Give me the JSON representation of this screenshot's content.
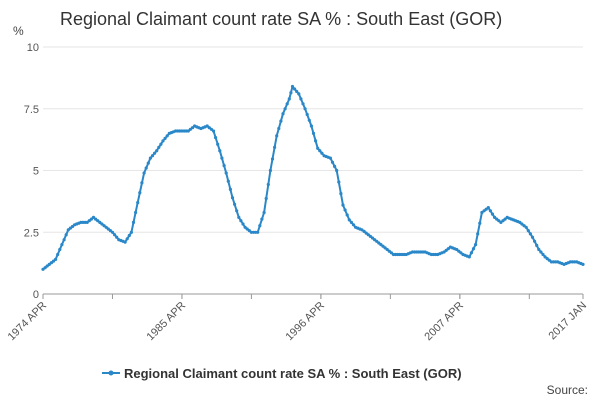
{
  "chart_data": {
    "type": "line",
    "title": "Regional Claimant count rate SA % : South East (GOR)",
    "ylabel": "%",
    "xlabel": "",
    "ylim": [
      0,
      10
    ],
    "y_ticks": [
      "0",
      "2.5",
      "5",
      "7.5",
      "10"
    ],
    "x_ticks": [
      {
        "label": "1974 APR",
        "x": 1974.25
      },
      {
        "label": "1985 APR",
        "x": 1985.25
      },
      {
        "label": "1996 APR",
        "x": 1996.25
      },
      {
        "label": "2007 APR",
        "x": 2007.25
      },
      {
        "label": "2017 JAN",
        "x": 2017.0
      }
    ],
    "xlim": [
      1974.25,
      2017.0
    ],
    "grid": "horizontal",
    "legend": "bottom-center",
    "series": [
      {
        "name": "Regional Claimant count rate SA % : South East (GOR)",
        "color": "#2a87c8",
        "points": [
          [
            1974.25,
            1.0
          ],
          [
            1974.75,
            1.2
          ],
          [
            1975.25,
            1.4
          ],
          [
            1975.75,
            2.0
          ],
          [
            1976.25,
            2.6
          ],
          [
            1976.75,
            2.8
          ],
          [
            1977.25,
            2.9
          ],
          [
            1977.75,
            2.9
          ],
          [
            1978.25,
            3.1
          ],
          [
            1978.75,
            2.9
          ],
          [
            1979.25,
            2.7
          ],
          [
            1979.75,
            2.5
          ],
          [
            1980.25,
            2.2
          ],
          [
            1980.75,
            2.1
          ],
          [
            1981.25,
            2.5
          ],
          [
            1981.75,
            3.7
          ],
          [
            1982.25,
            4.9
          ],
          [
            1982.75,
            5.5
          ],
          [
            1983.25,
            5.8
          ],
          [
            1983.75,
            6.2
          ],
          [
            1984.25,
            6.5
          ],
          [
            1984.75,
            6.6
          ],
          [
            1985.25,
            6.6
          ],
          [
            1985.75,
            6.6
          ],
          [
            1986.25,
            6.8
          ],
          [
            1986.75,
            6.7
          ],
          [
            1987.25,
            6.8
          ],
          [
            1987.75,
            6.6
          ],
          [
            1988.25,
            5.8
          ],
          [
            1988.75,
            4.9
          ],
          [
            1989.25,
            3.9
          ],
          [
            1989.75,
            3.1
          ],
          [
            1990.25,
            2.7
          ],
          [
            1990.75,
            2.5
          ],
          [
            1991.25,
            2.5
          ],
          [
            1991.75,
            3.3
          ],
          [
            1992.25,
            5.0
          ],
          [
            1992.75,
            6.4
          ],
          [
            1993.25,
            7.3
          ],
          [
            1993.75,
            7.9
          ],
          [
            1994.0,
            8.4
          ],
          [
            1994.5,
            8.1
          ],
          [
            1995.0,
            7.5
          ],
          [
            1995.5,
            6.8
          ],
          [
            1996.0,
            5.9
          ],
          [
            1996.5,
            5.6
          ],
          [
            1997.0,
            5.5
          ],
          [
            1997.5,
            5.0
          ],
          [
            1998.0,
            3.6
          ],
          [
            1998.5,
            3.0
          ],
          [
            1999.0,
            2.7
          ],
          [
            1999.5,
            2.6
          ],
          [
            2000.0,
            2.4
          ],
          [
            2000.5,
            2.2
          ],
          [
            2001.0,
            2.0
          ],
          [
            2001.5,
            1.8
          ],
          [
            2002.0,
            1.6
          ],
          [
            2002.5,
            1.6
          ],
          [
            2003.0,
            1.6
          ],
          [
            2003.5,
            1.7
          ],
          [
            2004.0,
            1.7
          ],
          [
            2004.5,
            1.7
          ],
          [
            2005.0,
            1.6
          ],
          [
            2005.5,
            1.6
          ],
          [
            2006.0,
            1.7
          ],
          [
            2006.5,
            1.9
          ],
          [
            2007.0,
            1.8
          ],
          [
            2007.5,
            1.6
          ],
          [
            2008.0,
            1.5
          ],
          [
            2008.5,
            2.0
          ],
          [
            2009.0,
            3.3
          ],
          [
            2009.5,
            3.5
          ],
          [
            2010.0,
            3.1
          ],
          [
            2010.5,
            2.9
          ],
          [
            2011.0,
            3.1
          ],
          [
            2011.5,
            3.0
          ],
          [
            2012.0,
            2.9
          ],
          [
            2012.5,
            2.7
          ],
          [
            2013.0,
            2.3
          ],
          [
            2013.5,
            1.8
          ],
          [
            2014.0,
            1.5
          ],
          [
            2014.5,
            1.3
          ],
          [
            2015.0,
            1.3
          ],
          [
            2015.5,
            1.2
          ],
          [
            2016.0,
            1.3
          ],
          [
            2016.5,
            1.3
          ],
          [
            2017.0,
            1.2
          ]
        ]
      }
    ]
  },
  "footer": {
    "source_label": "Source:"
  }
}
